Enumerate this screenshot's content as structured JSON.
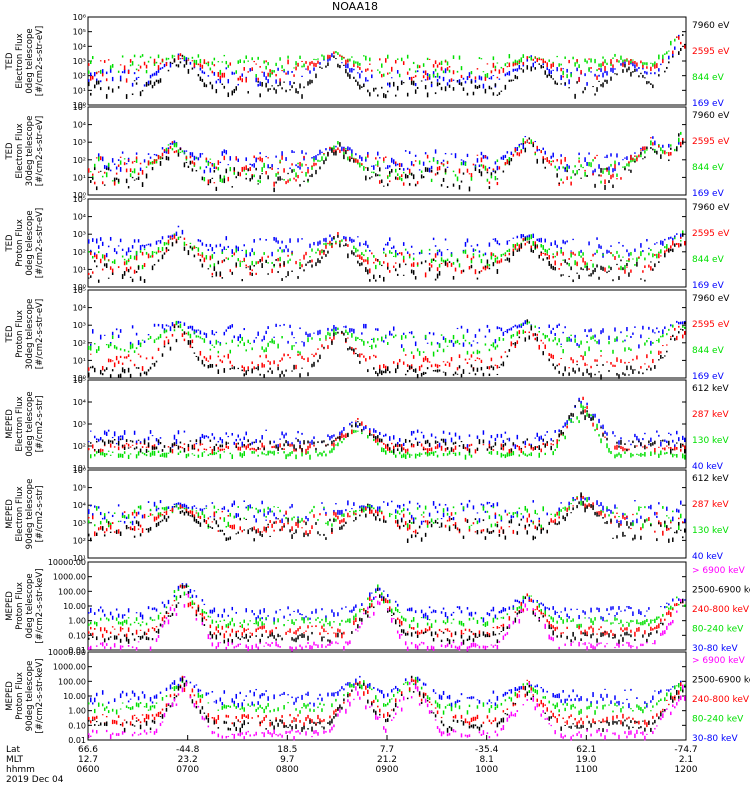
{
  "title": "NOAA18",
  "colors": {
    "black": "#000000",
    "blue": "#0000ff",
    "green": "#00e000",
    "red": "#ff0000",
    "magenta": "#ff00ff",
    "axis": "#000000"
  },
  "chart_data": [
    {
      "type": "scatter",
      "id": "ted-e-0",
      "ylabel": [
        "TED",
        "Electron Flux",
        "0deg telescope",
        "[#/cm2-s-str-eV]"
      ],
      "scale": "log",
      "ylim_exp": [
        0,
        6
      ],
      "tick_labels": [
        "10⁰",
        "10¹",
        "10²",
        "10³",
        "10⁴",
        "10⁵",
        "10⁶"
      ],
      "series": [
        {
          "name": "7960 eV",
          "color": "black",
          "level": 1.2,
          "spread": 0.5
        },
        {
          "name": "2595 eV",
          "color": "red",
          "level": 2.5,
          "spread": 0.7
        },
        {
          "name": "844 eV",
          "color": "green",
          "level": 2.8,
          "spread": 0.7
        },
        {
          "name": "169 eV",
          "color": "blue",
          "level": 2.0,
          "spread": 0.6
        }
      ],
      "bursts": [
        {
          "t": 0.91,
          "peak": 3.7
        },
        {
          "t": 2.45,
          "peak": 3.8
        },
        {
          "t": 4.45,
          "peak": 3.5
        },
        {
          "t": 5.4,
          "peak": 3.2
        },
        {
          "t": 5.95,
          "peak": 5.3
        },
        {
          "t": 7.0,
          "peak": 3.0
        },
        {
          "t": 7.9,
          "peak": 3.2
        }
      ]
    },
    {
      "type": "scatter",
      "id": "ted-e-30",
      "ylabel": [
        "TED",
        "Electron Flux",
        "30deg telescope",
        "[#/cm2-s-str-eV]"
      ],
      "scale": "log",
      "ylim_exp": [
        0,
        5
      ],
      "tick_labels": [
        "10⁰",
        "10¹",
        "10²",
        "10³",
        "10⁴",
        "10⁵"
      ],
      "series": [
        {
          "name": "7960 eV",
          "color": "black",
          "level": 1.0,
          "spread": 0.6
        },
        {
          "name": "2595 eV",
          "color": "red",
          "level": 1.5,
          "spread": 0.8
        },
        {
          "name": "844 eV",
          "color": "green",
          "level": 1.5,
          "spread": 0.7
        },
        {
          "name": "169 eV",
          "color": "blue",
          "level": 2.0,
          "spread": 0.6
        }
      ],
      "bursts": [
        {
          "t": 0.85,
          "peak": 3.2
        },
        {
          "t": 2.5,
          "peak": 3.2
        },
        {
          "t": 4.4,
          "peak": 3.5
        },
        {
          "t": 5.65,
          "peak": 3.4
        },
        {
          "t": 5.95,
          "peak": 3.8
        },
        {
          "t": 7.9,
          "peak": 3.2
        }
      ]
    },
    {
      "type": "scatter",
      "id": "ted-p-0",
      "ylabel": [
        "TED",
        "Proton Flux",
        "0deg telescope",
        "[#/cm2-s-str-eV]"
      ],
      "scale": "log",
      "ylim_exp": [
        0,
        5
      ],
      "tick_labels": [
        "10⁰",
        "10¹",
        "10²",
        "10³",
        "10⁴",
        "10⁵"
      ],
      "series": [
        {
          "name": "7960 eV",
          "color": "black",
          "level": 1.0,
          "spread": 0.6
        },
        {
          "name": "2595 eV",
          "color": "red",
          "level": 1.4,
          "spread": 0.6
        },
        {
          "name": "844 eV",
          "color": "green",
          "level": 1.7,
          "spread": 0.5
        },
        {
          "name": "169 eV",
          "color": "blue",
          "level": 2.4,
          "spread": 0.5
        }
      ],
      "bursts": [
        {
          "t": 0.9,
          "peak": 3.5
        },
        {
          "t": 2.5,
          "peak": 3.2
        },
        {
          "t": 4.4,
          "peak": 3.2
        },
        {
          "t": 5.95,
          "peak": 3.3
        },
        {
          "t": 7.9,
          "peak": 3.5
        }
      ]
    },
    {
      "type": "scatter",
      "id": "ted-p-30",
      "ylabel": [
        "TED",
        "Proton Flux",
        "30deg telescope",
        "[#/cm2-s-str-eV]"
      ],
      "scale": "log",
      "ylim_exp": [
        0,
        5
      ],
      "tick_labels": [
        "10⁰",
        "10¹",
        "10²",
        "10³",
        "10⁴",
        "10⁵"
      ],
      "series": [
        {
          "name": "7960 eV",
          "color": "black",
          "level": 0.5,
          "spread": 0.3
        },
        {
          "name": "2595 eV",
          "color": "red",
          "level": 1.0,
          "spread": 0.4
        },
        {
          "name": "844 eV",
          "color": "green",
          "level": 2.0,
          "spread": 0.5
        },
        {
          "name": "169 eV",
          "color": "blue",
          "level": 2.5,
          "spread": 0.6
        }
      ],
      "bursts": [
        {
          "t": 0.9,
          "peak": 3.4
        },
        {
          "t": 2.5,
          "peak": 3.1
        },
        {
          "t": 4.4,
          "peak": 3.4
        },
        {
          "t": 5.95,
          "peak": 3.5
        },
        {
          "t": 7.9,
          "peak": 3.2
        }
      ]
    },
    {
      "type": "scatter",
      "id": "meped-e-0",
      "ylabel": [
        "MEPED",
        "Electron Flux",
        "0deg telescope",
        "[#/cm2-s-str]"
      ],
      "scale": "log",
      "ylim_exp": [
        1,
        5
      ],
      "tick_labels": [
        "10¹",
        "10²",
        "10³",
        "10⁴",
        "10⁵"
      ],
      "series": [
        {
          "name": "612 keV",
          "color": "black",
          "level": 2.1,
          "spread": 0.25
        },
        {
          "name": "287 keV",
          "color": "red",
          "level": 2.0,
          "spread": 0.15
        },
        {
          "name": "130 keV",
          "color": "green",
          "level": 1.7,
          "spread": 0.1
        },
        {
          "name": "40 keV",
          "color": "blue",
          "level": 2.4,
          "spread": 0.35
        }
      ],
      "bursts": [
        {
          "t": 2.7,
          "peak": 3.3
        },
        {
          "t": 4.95,
          "peak": 4.4
        },
        {
          "t": 7.95,
          "peak": 5.0
        }
      ]
    },
    {
      "type": "scatter",
      "id": "meped-e-90",
      "ylabel": [
        "MEPED",
        "Electron Flux",
        "90deg telescope",
        "[#/cm2-s-str]"
      ],
      "scale": "log",
      "ylim_exp": [
        1,
        6
      ],
      "tick_labels": [
        "10¹",
        "10²",
        "10³",
        "10⁴",
        "10⁵",
        "10⁶"
      ],
      "series": [
        {
          "name": "612 keV",
          "color": "black",
          "level": 2.7,
          "spread": 0.6
        },
        {
          "name": "287 keV",
          "color": "red",
          "level": 3.1,
          "spread": 0.6
        },
        {
          "name": "130 keV",
          "color": "green",
          "level": 3.4,
          "spread": 0.6
        },
        {
          "name": "40 keV",
          "color": "blue",
          "level": 3.7,
          "spread": 0.6
        }
      ],
      "bursts": [
        {
          "t": 0.9,
          "peak": 4.2
        },
        {
          "t": 2.8,
          "peak": 4.1
        },
        {
          "t": 4.95,
          "peak": 4.8
        },
        {
          "t": 7.95,
          "peak": 4.9
        }
      ]
    },
    {
      "type": "scatter",
      "id": "meped-p-0",
      "ylabel": [
        "MEPED",
        "Proton Flux",
        "0deg telescope",
        "[#/cm2-s-str-keV]"
      ],
      "scale": "log",
      "ylim_exp": [
        -2,
        4
      ],
      "tick_labels": [
        "0.01",
        "0.10",
        "1.00",
        "10.00",
        "100.00",
        "1000.00",
        "10000.00"
      ],
      "series": [
        {
          "name": "> 6900 keV",
          "color": "magenta",
          "level": -1.6,
          "spread": 0.2
        },
        {
          "name": "2500-6900 keV",
          "color": "black",
          "level": -1.0,
          "spread": 0.3
        },
        {
          "name": "240-800 keV",
          "color": "red",
          "level": -0.6,
          "spread": 0.3
        },
        {
          "name": "80-240 keV",
          "color": "green",
          "level": 0.0,
          "spread": 0.25
        },
        {
          "name": "30-80 keV",
          "color": "blue",
          "level": 0.6,
          "spread": 0.4
        }
      ],
      "bursts": [
        {
          "t": 0.95,
          "peak": 3.0
        },
        {
          "t": 2.9,
          "peak": 2.5
        },
        {
          "t": 4.4,
          "peak": 2.0
        },
        {
          "t": 5.95,
          "peak": 2.0
        },
        {
          "t": 7.9,
          "peak": 1.6
        }
      ]
    },
    {
      "type": "scatter",
      "id": "meped-p-90",
      "ylabel": [
        "MEPED",
        "Proton Flux",
        "90deg telescope",
        "[#/cm2-s-str-keV]"
      ],
      "scale": "log",
      "ylim_exp": [
        -2,
        4
      ],
      "tick_labels": [
        "0.01",
        "0.10",
        "1.00",
        "10.00",
        "100.00",
        "1000.00",
        "10000.00"
      ],
      "series": [
        {
          "name": "> 6900 keV",
          "color": "magenta",
          "level": -1.5,
          "spread": 0.25
        },
        {
          "name": "2500-6900 keV",
          "color": "black",
          "level": -0.9,
          "spread": 0.3
        },
        {
          "name": "240-800 keV",
          "color": "red",
          "level": -0.5,
          "spread": 0.3
        },
        {
          "name": "80-240 keV",
          "color": "green",
          "level": 0.3,
          "spread": 0.3
        },
        {
          "name": "30-80 keV",
          "color": "blue",
          "level": 1.0,
          "spread": 0.5
        }
      ],
      "bursts": [
        {
          "t": 0.95,
          "peak": 2.6
        },
        {
          "t": 2.7,
          "peak": 2.6
        },
        {
          "t": 3.25,
          "peak": 2.6
        },
        {
          "t": 4.4,
          "peak": 2.2
        },
        {
          "t": 5.95,
          "peak": 2.2
        },
        {
          "t": 7.9,
          "peak": 2.1
        }
      ]
    }
  ],
  "x_axis": {
    "row_labels": [
      "Lat",
      "MLT",
      "hhmm",
      "2019 Dec 04"
    ],
    "ticks": [
      {
        "lat": "66.6",
        "mlt": "12.7",
        "hhmm": "0600"
      },
      {
        "lat": "-44.8",
        "mlt": "23.2",
        "hhmm": "0700"
      },
      {
        "lat": "18.5",
        "mlt": "9.7",
        "hhmm": "0800"
      },
      {
        "lat": "7.7",
        "mlt": "21.2",
        "hhmm": "0900"
      },
      {
        "lat": "-35.4",
        "mlt": "8.1",
        "hhmm": "1000"
      },
      {
        "lat": "62.1",
        "mlt": "19.0",
        "hhmm": "1100"
      },
      {
        "lat": "-74.7",
        "mlt": "2.1",
        "hhmm": "1200"
      }
    ]
  }
}
